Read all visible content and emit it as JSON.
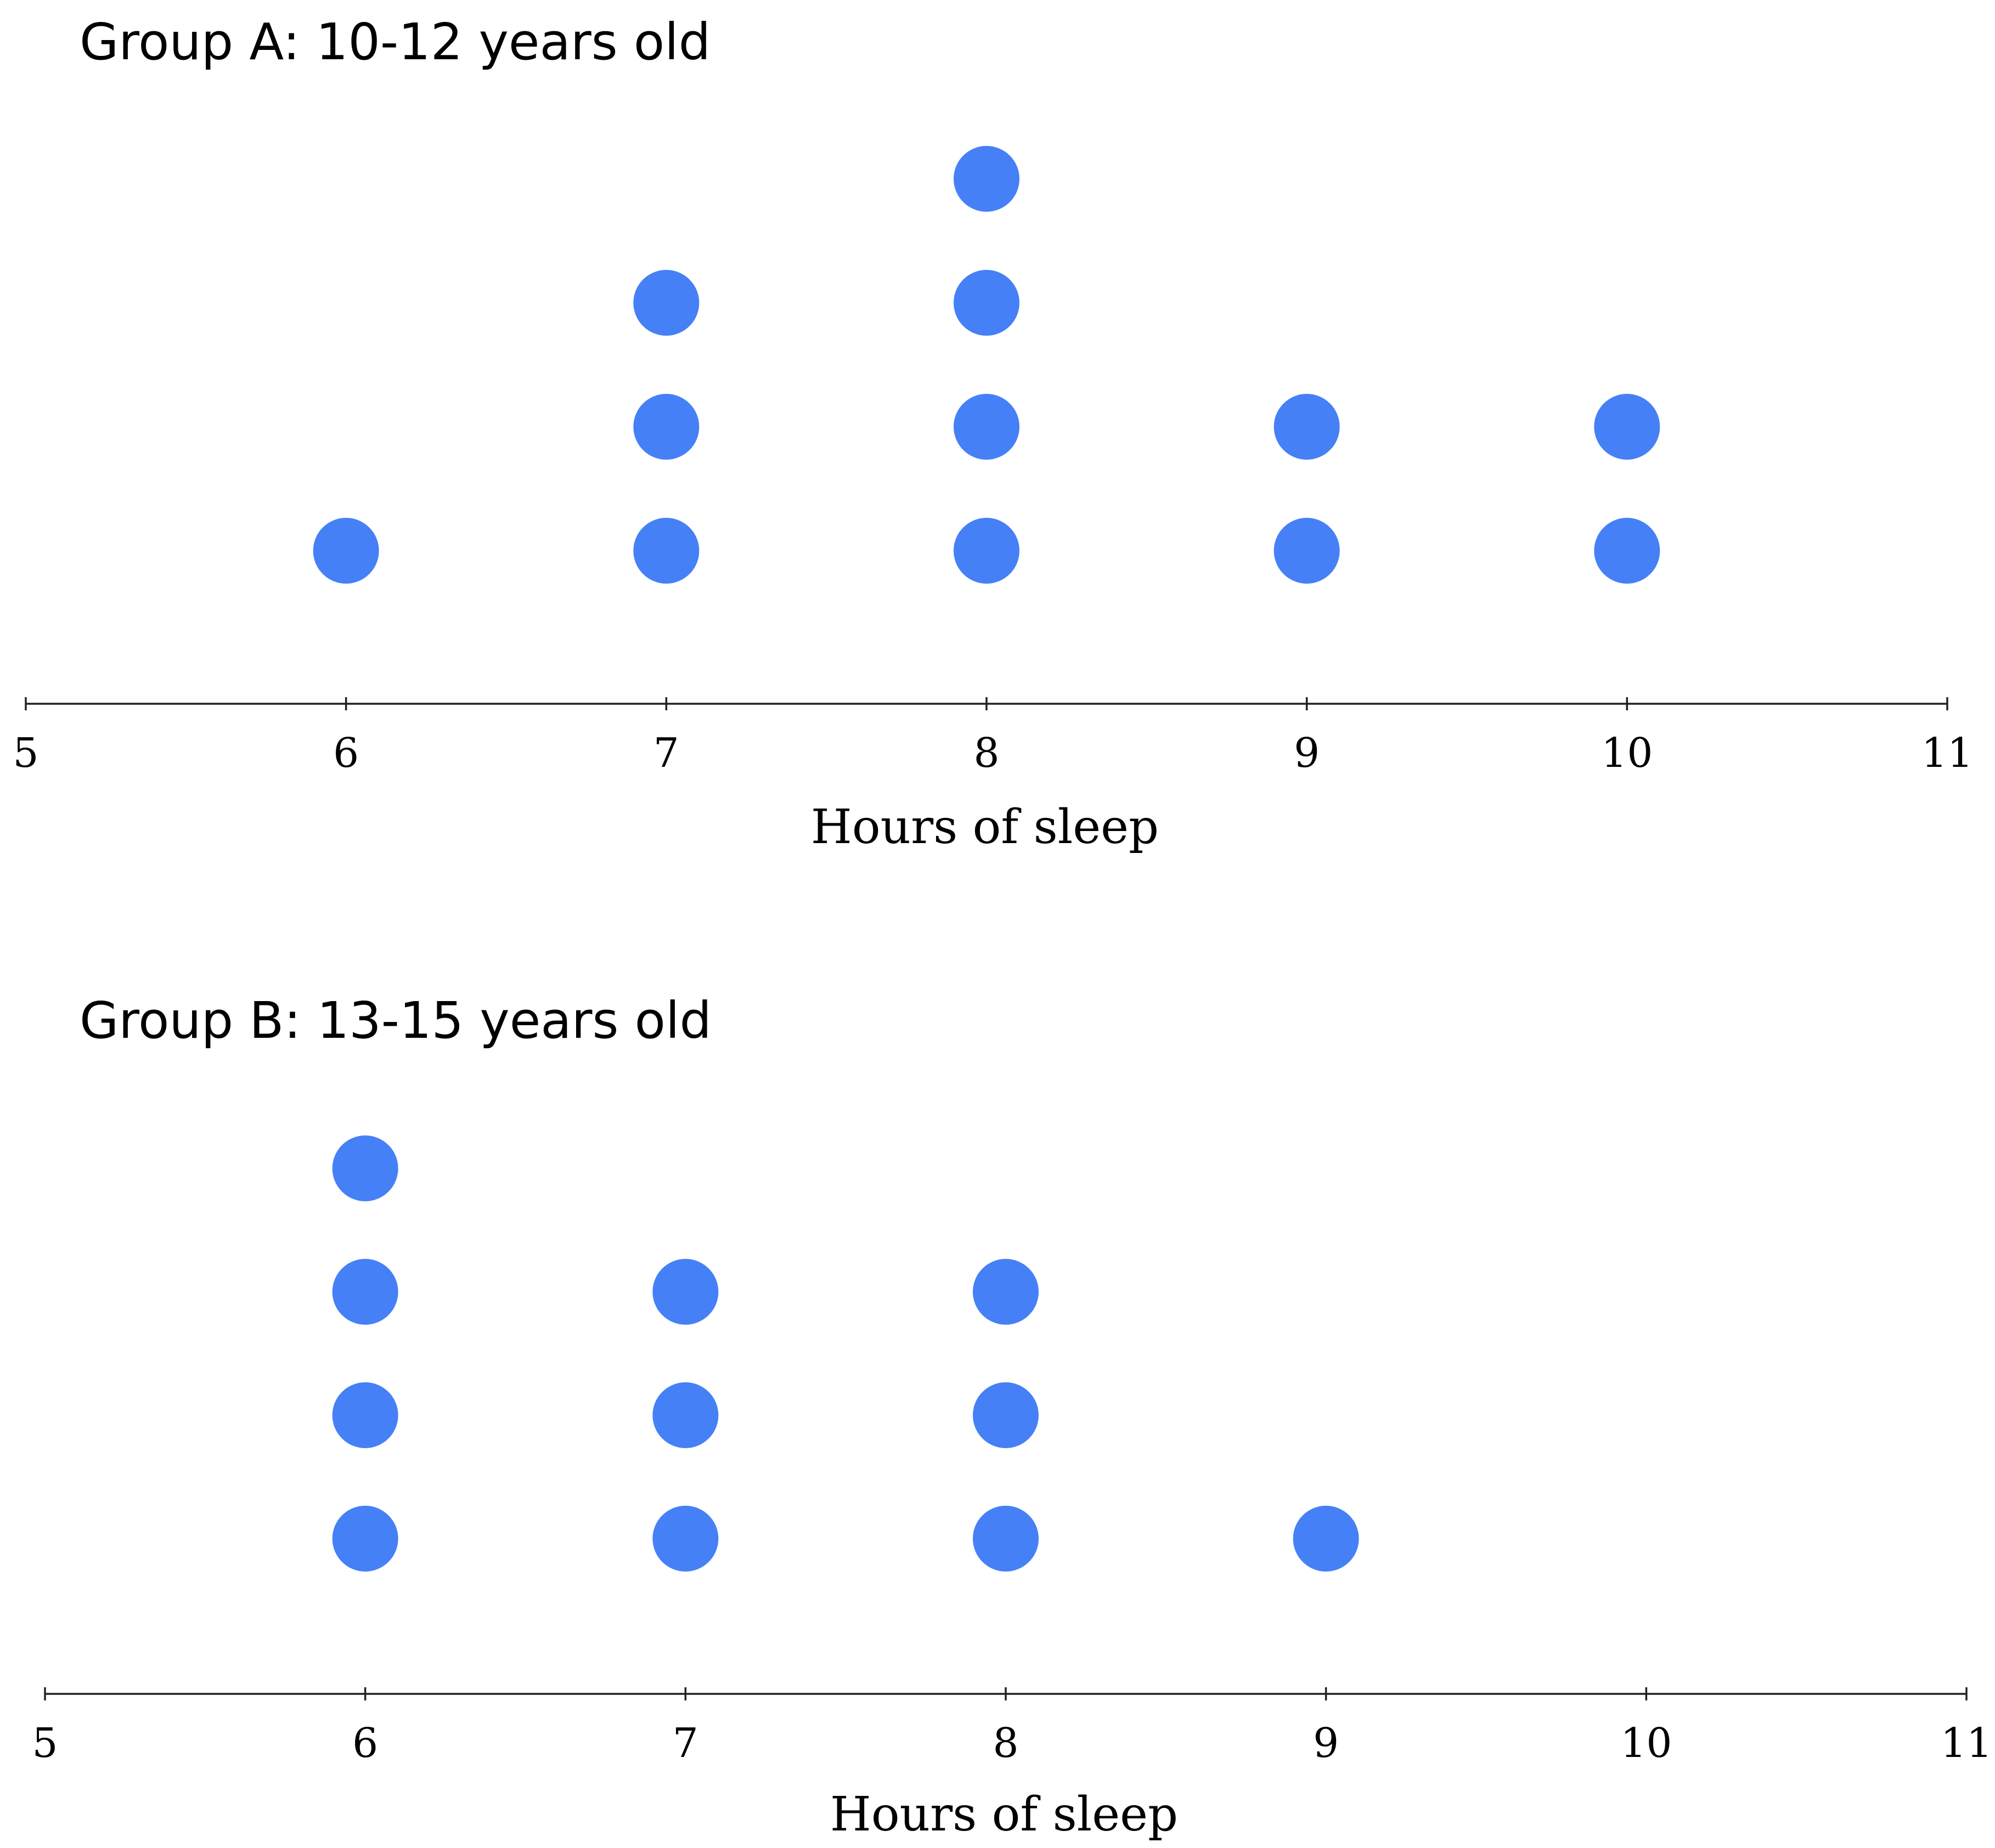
{
  "chart_data": [
    {
      "type": "scatter",
      "subtype": "dot-plot",
      "title": "Group A: 10-12 years old",
      "xlabel": "Hours of sleep",
      "ylabel": "",
      "xlim": [
        5,
        11
      ],
      "x_ticks": [
        5,
        6,
        7,
        8,
        9,
        10,
        11
      ],
      "x_tick_labels": [
        "5",
        "6",
        "7",
        "8",
        "9",
        "10",
        "11"
      ],
      "grid": false,
      "color": "#4580F7",
      "points": [
        {
          "x": 6,
          "count": 1
        },
        {
          "x": 7,
          "count": 3
        },
        {
          "x": 8,
          "count": 4
        },
        {
          "x": 9,
          "count": 2
        },
        {
          "x": 10,
          "count": 2
        }
      ]
    },
    {
      "type": "scatter",
      "subtype": "dot-plot",
      "title": "Group B:  13-15 years old",
      "xlabel": "Hours of sleep",
      "ylabel": "",
      "xlim": [
        5,
        11
      ],
      "x_ticks": [
        5,
        6,
        7,
        8,
        9,
        10,
        11
      ],
      "x_tick_labels": [
        "5",
        "6",
        "7",
        "8",
        "9",
        "10",
        "11"
      ],
      "grid": false,
      "color": "#4580F7",
      "points": [
        {
          "x": 6,
          "count": 4
        },
        {
          "x": 7,
          "count": 3
        },
        {
          "x": 8,
          "count": 3
        },
        {
          "x": 9,
          "count": 1
        }
      ]
    }
  ]
}
